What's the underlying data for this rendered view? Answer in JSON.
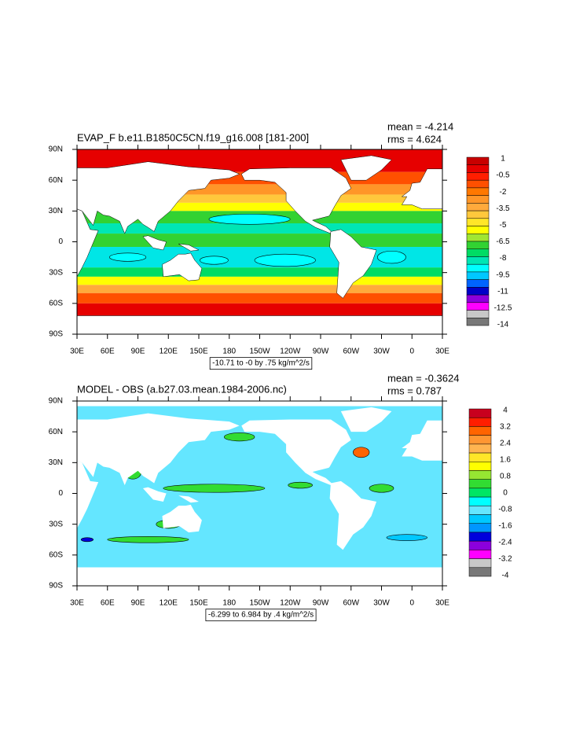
{
  "panels": [
    {
      "title": "EVAP_F b.e11.B1850C5CN.f19_g16.008 [181-200]",
      "mean": "mean = -4.214",
      "rms": "rms = 4.624",
      "info": "-10.71 to -0 by .75 kg/m^2/s",
      "colorbar_labels": [
        1,
        -0.5,
        -2,
        -3.5,
        -5,
        -6.5,
        -8,
        -9.5,
        -11,
        -12.5,
        -14
      ],
      "colorbar_colors": [
        "#c80000",
        "#e60000",
        "#ff1e00",
        "#ff5000",
        "#ff7800",
        "#ff9628",
        "#ffaa3c",
        "#ffc83c",
        "#ffe628",
        "#ffff00",
        "#a0e632",
        "#32d232",
        "#00dc64",
        "#00e6b4",
        "#00ffff",
        "#00c8ff",
        "#0064ff",
        "#0000c8",
        "#8c00dc",
        "#ff00ff",
        "#c8c8c8",
        "#787878"
      ]
    },
    {
      "title": "MODEL - OBS (a.b27.03.mean.1984-2006.nc)",
      "mean": "mean = -0.3624",
      "rms": "rms = 0.787",
      "info": "-6.299 to 6.984 by .4 kg/m^2/s",
      "colorbar_labels": [
        4,
        3.2,
        2.4,
        1.6,
        0.8,
        0,
        -0.8,
        -1.6,
        -2.4,
        -3.2,
        -4
      ],
      "colorbar_colors": [
        "#c8001e",
        "#ff1e00",
        "#ff6400",
        "#ff9632",
        "#ffb450",
        "#ffe628",
        "#ffff00",
        "#96e632",
        "#32dc32",
        "#00e664",
        "#00ffff",
        "#64e6ff",
        "#00c8ff",
        "#0096ff",
        "#0000dc",
        "#8c00dc",
        "#ff00ff",
        "#c8c8c8",
        "#787878"
      ]
    }
  ],
  "lon_labels": [
    "30E",
    "60E",
    "90E",
    "120E",
    "150E",
    "180",
    "150W",
    "120W",
    "90W",
    "60W",
    "30W",
    "0",
    "30E"
  ],
  "lat_labels": [
    "90N",
    "60N",
    "30N",
    "0",
    "30S",
    "60S",
    "90S"
  ]
}
